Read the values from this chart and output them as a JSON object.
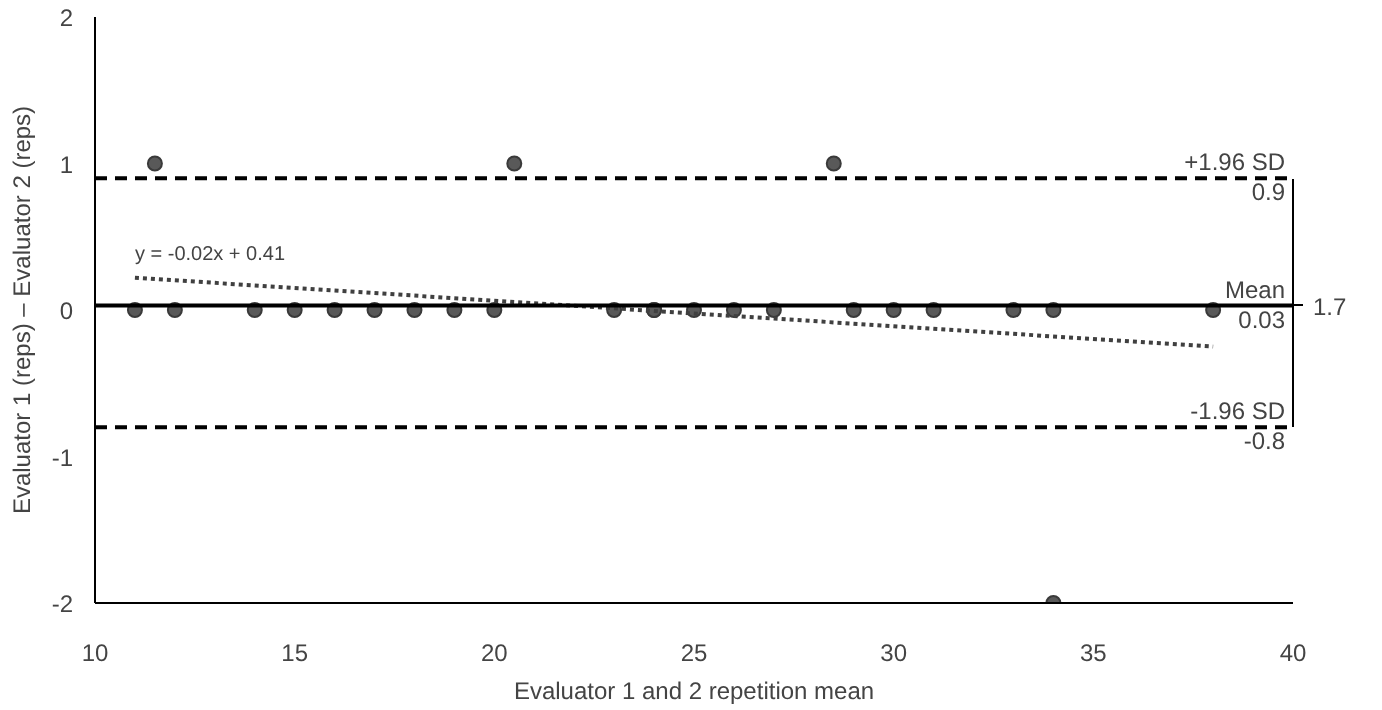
{
  "chart_data": {
    "type": "scatter",
    "xlabel": "Evaluator 1 and 2 repetition mean",
    "ylabel": "Evaluator 1 (reps) – Evaluator 2 (reps)",
    "xlim": [
      10,
      40
    ],
    "ylim": [
      -2,
      2
    ],
    "xticks": [
      10,
      15,
      20,
      25,
      30,
      35,
      40
    ],
    "yticks": [
      -2,
      -1,
      0,
      1,
      2
    ],
    "grid": false,
    "marker": "circle",
    "series": [
      {
        "color": "#595959",
        "x": [
          11,
          12,
          14,
          15,
          16,
          17,
          18,
          19,
          20,
          23,
          24,
          24,
          25,
          26,
          27,
          29,
          30,
          31,
          33,
          34,
          38,
          11.5,
          20.5,
          28.5,
          34
        ],
        "values": [
          0,
          0,
          0,
          0,
          0,
          0,
          0,
          0,
          0,
          0,
          0,
          0,
          0,
          0,
          0,
          0,
          0,
          0,
          0,
          0,
          0,
          1,
          1,
          1,
          -2
        ]
      },
      {
        "type": "line",
        "color": "#404040",
        "line_style": "dotted",
        "marker": "none",
        "x": [
          11,
          38
        ],
        "values": [
          0.22,
          -0.25
        ]
      }
    ],
    "ref_lines": [
      {
        "axis": "y",
        "value": 0.9,
        "label": "+1.96 SD",
        "line_style": "dashed",
        "color": "#000000"
      },
      {
        "axis": "y",
        "value": 0.03,
        "label": "Mean",
        "line_style": "solid",
        "color": "#000000"
      },
      {
        "axis": "y",
        "value": -0.8,
        "label": "-1.96 SD",
        "line_style": "dashed",
        "color": "#000000"
      }
    ],
    "annotations": [
      "y = -0.02x + 0.41",
      "1.7",
      {
        "text": "0.9",
        "y": 0.9
      },
      {
        "text": "0.03",
        "y": 0.03
      },
      {
        "text": "-0.8",
        "y": -0.8
      }
    ]
  }
}
